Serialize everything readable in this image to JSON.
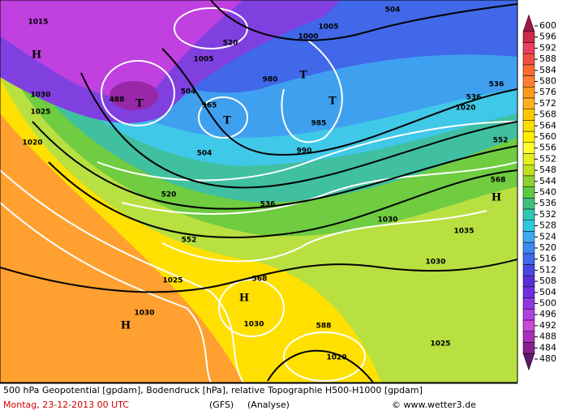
{
  "map": {
    "labels": [
      "H",
      "1015",
      "1030",
      "1025",
      "1020",
      "488",
      "T",
      "504",
      "520",
      "504",
      "T",
      "965",
      "980",
      "T",
      "T",
      "985",
      "990",
      "504",
      "536",
      "536",
      "1020",
      "552",
      "568",
      "H",
      "520",
      "536",
      "552",
      "1030",
      "1035",
      "1030",
      "568",
      "1025",
      "H",
      "1030",
      "H",
      "1030",
      "588",
      "1020",
      "1025",
      "1005",
      "1000",
      "1005"
    ]
  },
  "colorbar": {
    "ticks": [
      600,
      596,
      592,
      588,
      584,
      580,
      576,
      572,
      568,
      564,
      560,
      556,
      552,
      548,
      544,
      540,
      536,
      532,
      528,
      524,
      520,
      516,
      512,
      508,
      504,
      500,
      496,
      492,
      488,
      484,
      480
    ],
    "colors": [
      "#a01848",
      "#d02848",
      "#e84060",
      "#f05040",
      "#ff6a30",
      "#ff8030",
      "#ff9a20",
      "#ffb020",
      "#ffc800",
      "#ffdc00",
      "#fff000",
      "#ffff30",
      "#e4f020",
      "#c0e020",
      "#90d030",
      "#60c840",
      "#40c080",
      "#30c8b0",
      "#30c8e0",
      "#40a8f0",
      "#4088f0",
      "#4068e8",
      "#4848e0",
      "#5830d8",
      "#7030e0",
      "#9038e0",
      "#b040e0",
      "#c848d8",
      "#a830b8",
      "#882090",
      "#601868"
    ]
  },
  "footer": {
    "line1": "500 hPa Geopotential [gpdam], Bodendruck [hPa], relative Topographie H500-H1000 [gpdam]",
    "date": "Montag, 23-12-2013  00 UTC",
    "model": "(GFS)",
    "kind": "(Analyse)",
    "credit": "© www.wetter3.de"
  }
}
